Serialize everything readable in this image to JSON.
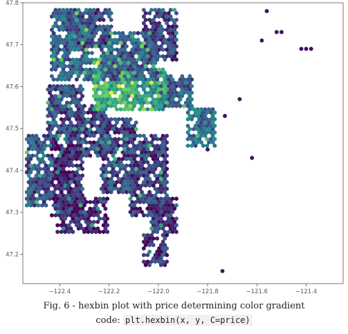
{
  "caption": {
    "line1": "Fig. 6 - hexbin plot with price determining color gradient",
    "code_prefix": "code: ",
    "code": "plt.hexbin(x, y, C=price)"
  },
  "chart_data": {
    "type": "hexbin",
    "title": "",
    "xlabel": "",
    "ylabel": "",
    "xlim": [
      -122.55,
      -121.25
    ],
    "ylim": [
      47.13,
      47.8
    ],
    "xticks": [
      -122.4,
      -122.2,
      -122.0,
      -121.8,
      -121.6,
      -121.4
    ],
    "xtick_labels": [
      "−122.4",
      "−122.2",
      "−122.0",
      "−121.8",
      "−121.6",
      "−121.4"
    ],
    "yticks": [
      47.2,
      47.3,
      47.4,
      47.5,
      47.6,
      47.7,
      47.8
    ],
    "ytick_labels": [
      "47.2",
      "47.3",
      "47.4",
      "47.5",
      "47.6",
      "47.7",
      "47.8"
    ],
    "grid": false,
    "colormap": "viridis",
    "color_stops": [
      "#440154",
      "#3b528b",
      "#21918c",
      "#5ec962",
      "#fde725"
    ],
    "density_regions": [
      {
        "x": [
          -122.42,
          -122.28
        ],
        "y": [
          47.62,
          47.775
        ],
        "value": 0.3
      },
      {
        "x": [
          -122.36,
          -122.2
        ],
        "y": [
          47.7,
          47.775
        ],
        "value": 0.22
      },
      {
        "x": [
          -122.22,
          -122.02
        ],
        "y": [
          47.62,
          47.72
        ],
        "value": 0.28
      },
      {
        "x": [
          -122.05,
          -121.94
        ],
        "y": [
          47.67,
          47.78
        ],
        "value": 0.2
      },
      {
        "x": [
          -122.25,
          -122.12
        ],
        "y": [
          47.55,
          47.66
        ],
        "value": 0.65
      },
      {
        "x": [
          -122.12,
          -121.98
        ],
        "y": [
          47.55,
          47.64
        ],
        "value": 0.55
      },
      {
        "x": [
          -122.44,
          -122.32
        ],
        "y": [
          47.48,
          47.6
        ],
        "value": 0.22
      },
      {
        "x": [
          -122.32,
          -122.22
        ],
        "y": [
          47.44,
          47.55
        ],
        "value": 0.18
      },
      {
        "x": [
          -122.22,
          -122.1
        ],
        "y": [
          47.35,
          47.52
        ],
        "value": 0.2
      },
      {
        "x": [
          -122.1,
          -121.98
        ],
        "y": [
          47.3,
          47.48
        ],
        "value": 0.18
      },
      {
        "x": [
          -122.42,
          -122.32
        ],
        "y": [
          47.3,
          47.46
        ],
        "value": 0.12
      },
      {
        "x": [
          -122.4,
          -122.22
        ],
        "y": [
          47.26,
          47.33
        ],
        "value": 0.1
      },
      {
        "x": [
          -122.52,
          -122.45
        ],
        "y": [
          47.32,
          47.48
        ],
        "value": 0.25
      },
      {
        "x": [
          -121.87,
          -121.78
        ],
        "y": [
          47.46,
          47.54
        ],
        "value": 0.35
      },
      {
        "x": [
          -122.05,
          -121.98
        ],
        "y": [
          47.18,
          47.24
        ],
        "value": 0.12
      },
      {
        "x": [
          -122.02,
          -121.94
        ],
        "y": [
          47.26,
          47.33
        ],
        "value": 0.15
      },
      {
        "x": [
          -121.98,
          -121.88
        ],
        "y": [
          47.56,
          47.62
        ],
        "value": 0.3
      }
    ],
    "outlier_points": [
      {
        "x": -121.42,
        "y": 47.69,
        "value": 0.05
      },
      {
        "x": -121.4,
        "y": 47.69,
        "value": 0.05
      },
      {
        "x": -121.38,
        "y": 47.69,
        "value": 0.05
      },
      {
        "x": -121.52,
        "y": 47.73,
        "value": 0.05
      },
      {
        "x": -121.5,
        "y": 47.73,
        "value": 0.05
      },
      {
        "x": -121.58,
        "y": 47.71,
        "value": 0.05
      },
      {
        "x": -121.56,
        "y": 47.78,
        "value": 0.05
      },
      {
        "x": -121.67,
        "y": 47.57,
        "value": 0.05
      },
      {
        "x": -121.62,
        "y": 47.43,
        "value": 0.05
      },
      {
        "x": -121.74,
        "y": 47.16,
        "value": 0.05
      },
      {
        "x": -121.73,
        "y": 47.53,
        "value": 0.05
      },
      {
        "x": -121.8,
        "y": 47.45,
        "value": 0.05
      }
    ]
  }
}
